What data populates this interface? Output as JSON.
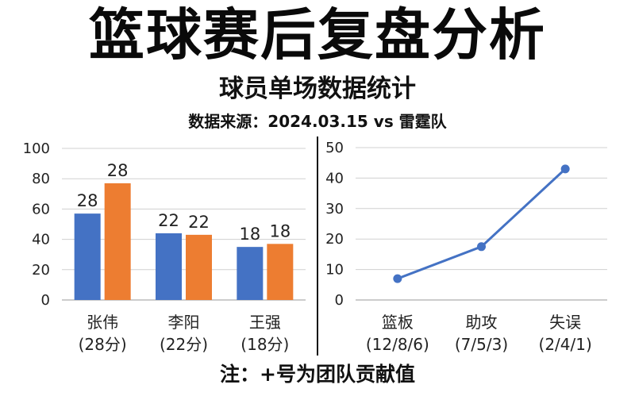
{
  "title": "篮球赛后复盘分析",
  "subtitle": "球员单场数据统计",
  "source": "数据来源：2024.03.15 vs 雷霆队",
  "note": "注：+号为团队贡献值",
  "colors": {
    "series1": "#4472c4",
    "series2": "#ed7d31",
    "line": "#4472c4",
    "grid": "#d0d0d0"
  },
  "chart_data": [
    {
      "type": "bar",
      "categories": [
        "张伟",
        "李阳",
        "王强"
      ],
      "category_sublabels": [
        "(28分)",
        "(22分)",
        "(18分)"
      ],
      "series": [
        {
          "values": [
            57,
            44,
            35
          ],
          "labels": [
            "28",
            "22",
            "18"
          ]
        },
        {
          "values": [
            77,
            43,
            37
          ],
          "labels": [
            "28",
            "22",
            "18"
          ]
        }
      ],
      "ylim": [
        0,
        100
      ],
      "yticks": [
        0,
        20,
        40,
        60,
        80,
        100
      ],
      "grid": true
    },
    {
      "type": "line",
      "categories": [
        "篮板",
        "助攻",
        "失误"
      ],
      "category_sublabels": [
        "(12/8/6)",
        "(7/5/3)",
        "(2/4/1)"
      ],
      "values": [
        7,
        17.5,
        43
      ],
      "ylim": [
        0,
        50
      ],
      "yticks": [
        0,
        10,
        20,
        30,
        40,
        50
      ],
      "grid": true
    }
  ]
}
